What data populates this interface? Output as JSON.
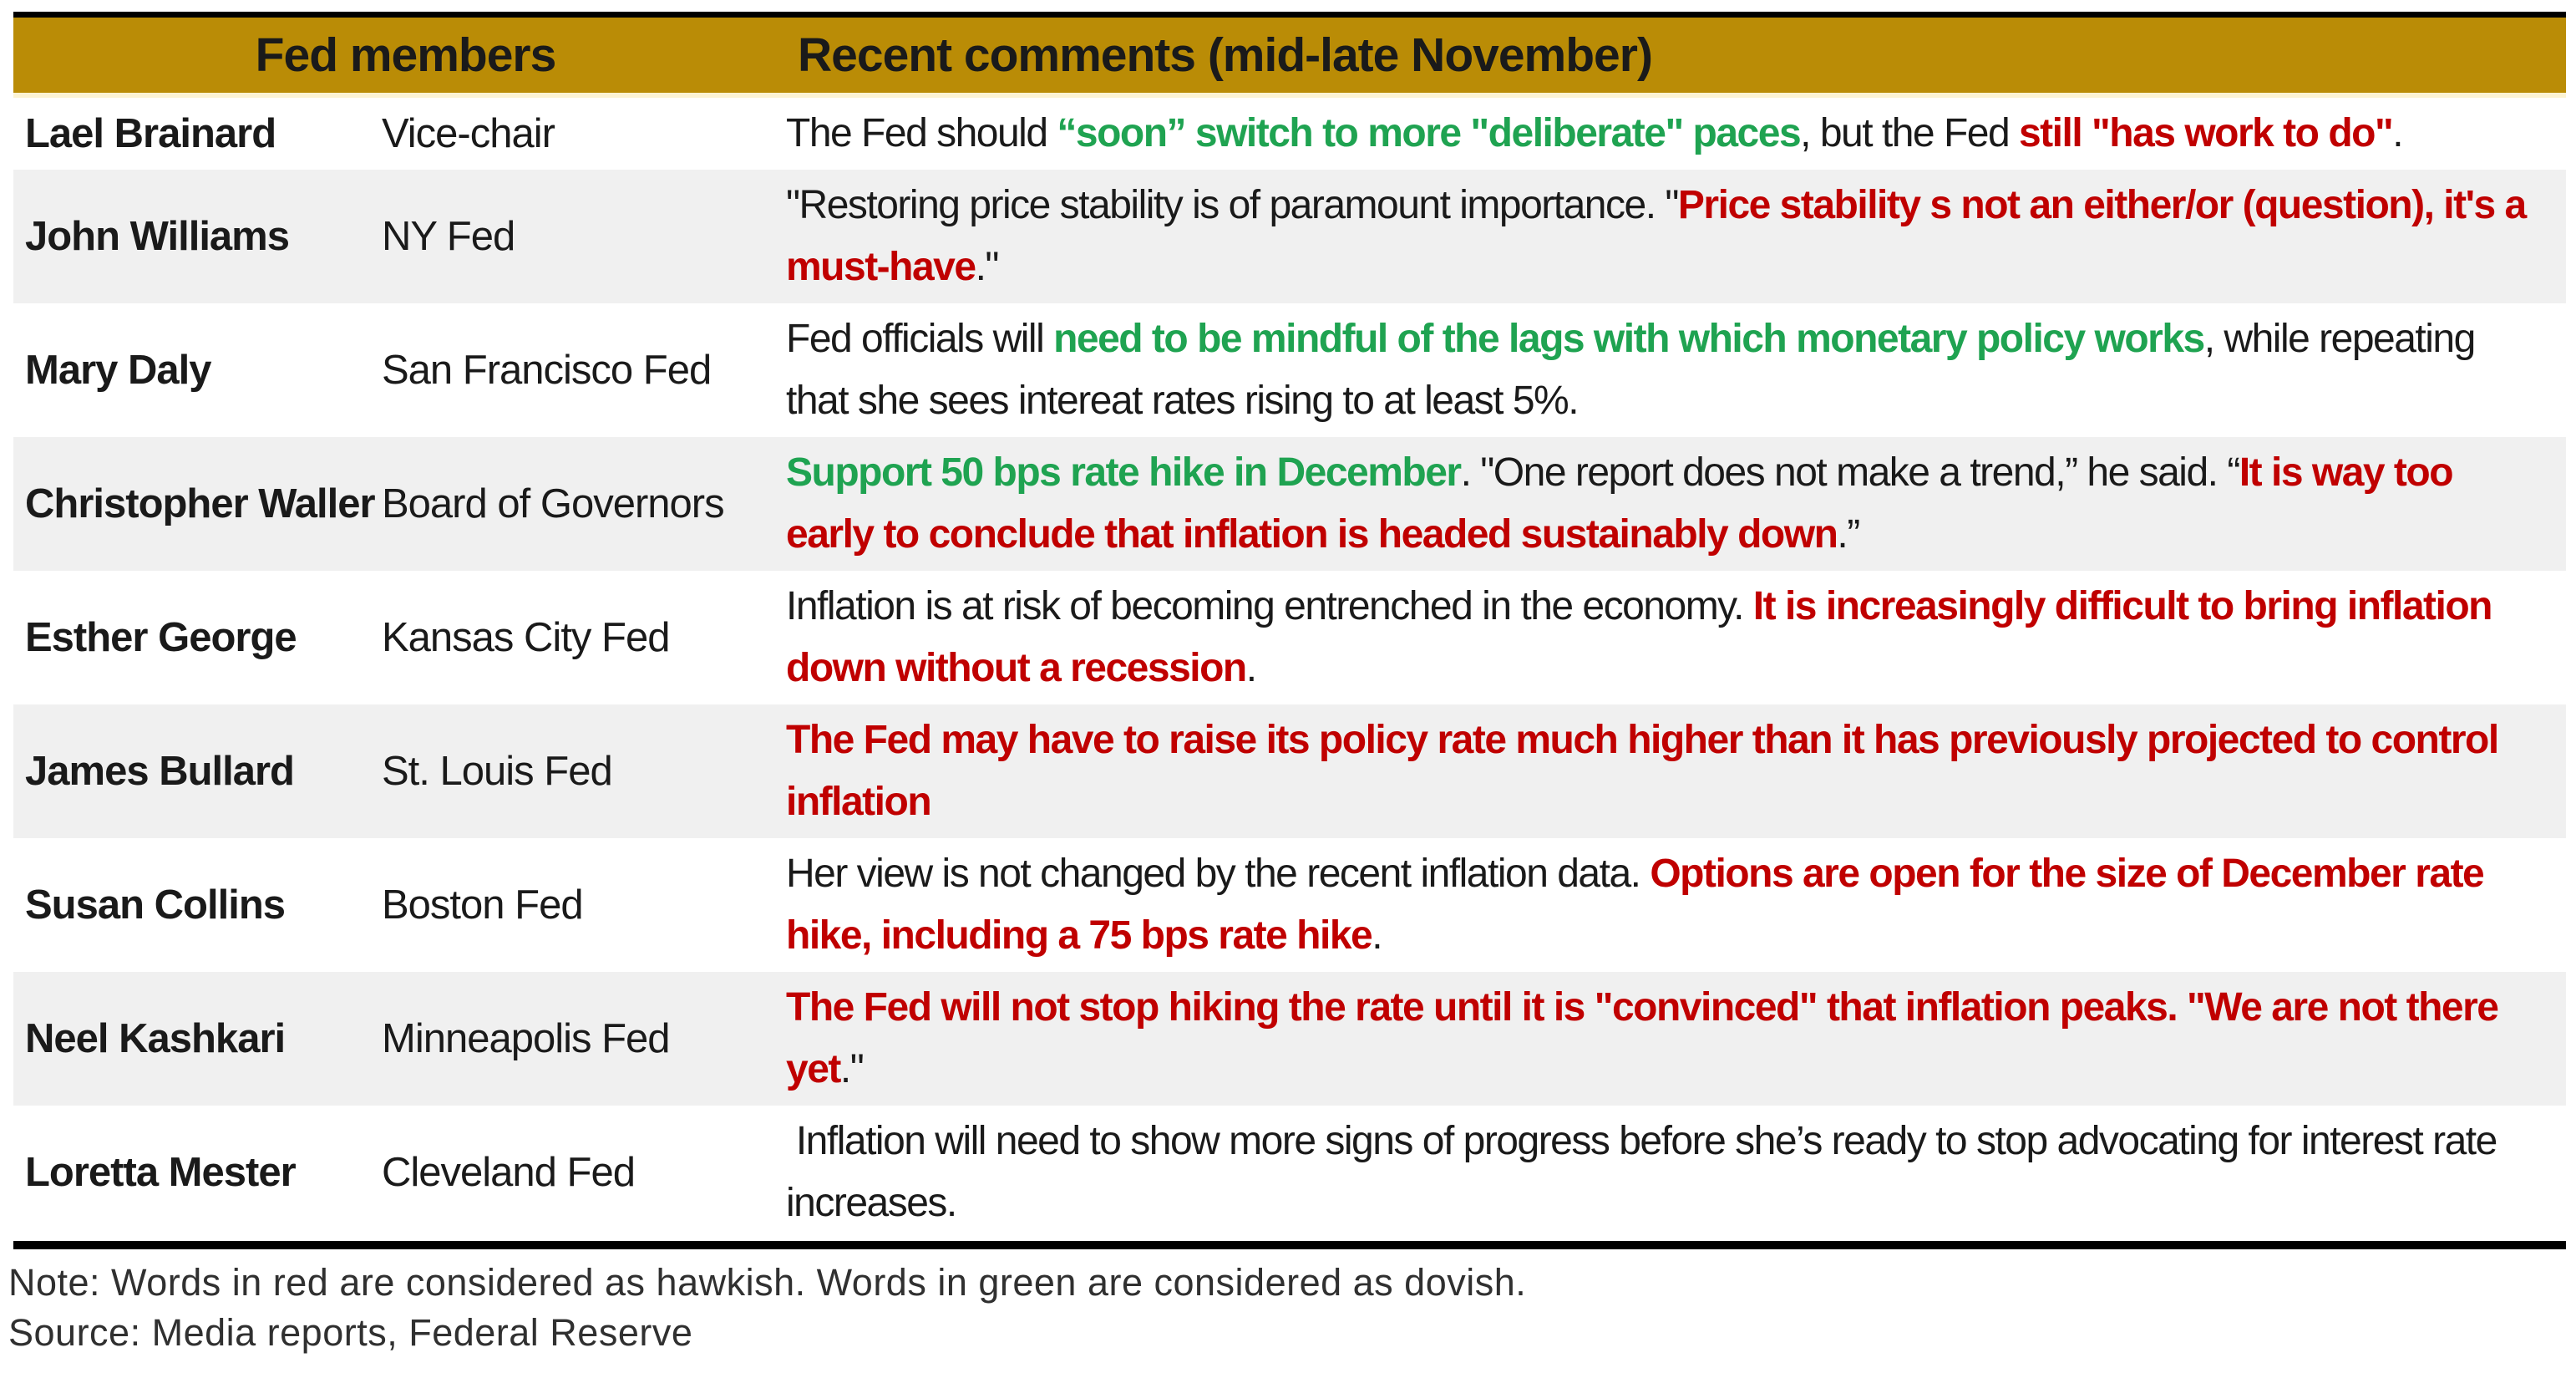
{
  "header": {
    "members_label": "Fed members",
    "comments_label": "Recent comments (mid-late November)"
  },
  "colors": {
    "header_gold": "#BA8C06",
    "hawkish_red": "#C00000",
    "dovish_green": "#1FA351",
    "stripe_gray": "#F0F0F0",
    "text_black": "#1A1A1A"
  },
  "table": {
    "rows": [
      {
        "name": "Lael Brainard",
        "role": "Vice-chair",
        "comment": [
          {
            "tone": "neutral",
            "text": "The Fed should "
          },
          {
            "tone": "dovish",
            "text": "“soon” switch to more \"deliberate\" paces"
          },
          {
            "tone": "neutral",
            "text": ", but the Fed "
          },
          {
            "tone": "hawkish",
            "text": "still \"has work to do\""
          },
          {
            "tone": "neutral",
            "text": "."
          }
        ]
      },
      {
        "name": "John Williams",
        "role": "NY Fed",
        "comment": [
          {
            "tone": "neutral",
            "text": "\"Restoring price stability is of paramount importance. \""
          },
          {
            "tone": "hawkish",
            "text": "Price stability s not an either/or (question), it's a must-have"
          },
          {
            "tone": "neutral",
            "text": ".\""
          }
        ]
      },
      {
        "name": "Mary Daly",
        "role": "San Francisco Fed",
        "comment": [
          {
            "tone": "neutral",
            "text": "Fed officials will "
          },
          {
            "tone": "dovish",
            "text": "need to be mindful of the lags with which monetary policy works"
          },
          {
            "tone": "neutral",
            "text": ", while repeating that she sees intereat rates rising to at least 5%."
          }
        ]
      },
      {
        "name": "Christopher Waller",
        "role": "Board of Governors",
        "comment": [
          {
            "tone": "dovish",
            "text": "Support 50 bps rate hike in December"
          },
          {
            "tone": "neutral",
            "text": ". \"One report does not make a trend,” he said. “"
          },
          {
            "tone": "hawkish",
            "text": "It is way too early to conclude that inflation is headed sustainably down"
          },
          {
            "tone": "neutral",
            "text": ".”"
          }
        ]
      },
      {
        "name": "Esther George",
        "role": "Kansas City Fed",
        "comment": [
          {
            "tone": "neutral",
            "text": "Inflation is at risk of becoming entrenched in the economy. "
          },
          {
            "tone": "hawkish",
            "text": "It is increasingly difficult to bring inflation down without a recession"
          },
          {
            "tone": "neutral",
            "text": "."
          }
        ]
      },
      {
        "name": "James Bullard",
        "role": "St. Louis Fed",
        "comment": [
          {
            "tone": "hawkish",
            "text": "The Fed may have to raise its policy rate much higher than it has previously projected to control inflation"
          }
        ]
      },
      {
        "name": "Susan Collins",
        "role": "Boston Fed",
        "comment": [
          {
            "tone": "neutral",
            "text": "Her view is not changed by the recent inflation data. "
          },
          {
            "tone": "hawkish",
            "text": "Options are open for the size of December rate hike, including a 75 bps rate hike"
          },
          {
            "tone": "neutral",
            "text": "."
          }
        ]
      },
      {
        "name": "Neel Kashkari",
        "role": "Minneapolis Fed",
        "comment": [
          {
            "tone": "hawkish",
            "text": "The Fed will not stop hiking the rate until it is \"convinced\" that inflation peaks. \"We are not there yet"
          },
          {
            "tone": "neutral",
            "text": ".\""
          }
        ]
      },
      {
        "name": "Loretta Mester",
        "role": "Cleveland Fed",
        "comment": [
          {
            "tone": "neutral",
            "text": " Inflation will need to show more signs of progress before she’s ready to stop advocating for interest rate increases."
          }
        ]
      }
    ]
  },
  "footer": {
    "note": "Note: Words in red are considered as hawkish. Words in green are considered as dovish.",
    "source": "Source: Media reports, Federal Reserve"
  }
}
